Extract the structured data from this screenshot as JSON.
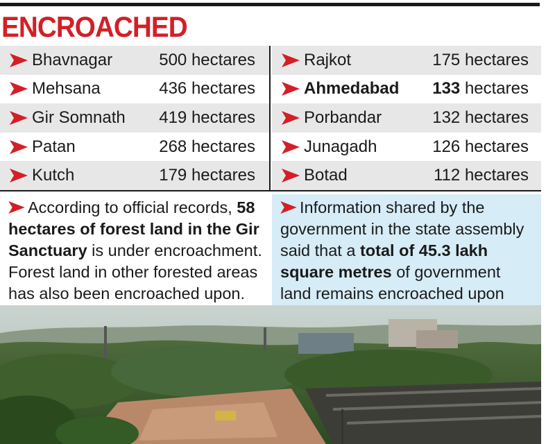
{
  "title": "ENCROACHED",
  "colors": {
    "title": "#d41f26",
    "arrow": "#d41f26",
    "row_shade": "#e7e7e7",
    "note_blue": "#d6ecf7"
  },
  "left_rows": [
    {
      "name": "Bhavnagar",
      "value": "500 hectares"
    },
    {
      "name": "Mehsana",
      "value": "436 hectares"
    },
    {
      "name": "Gir Somnath",
      "value": "419 hectares"
    },
    {
      "name": "Patan",
      "value": "268 hectares"
    },
    {
      "name": "Kutch",
      "value": "179 hectares"
    }
  ],
  "right_rows": [
    {
      "name": "Rajkot",
      "value_num": "175",
      "value_unit": "hectares"
    },
    {
      "name": "Ahmedabad",
      "value_num": "133",
      "value_unit": "hectares"
    },
    {
      "name": "Porbandar",
      "value_num": "132",
      "value_unit": "hectares"
    },
    {
      "name": "Junagadh",
      "value_num": "126",
      "value_unit": "hectares"
    },
    {
      "name": "Botad",
      "value_num": "112",
      "value_unit": "hectares"
    }
  ],
  "note_left": {
    "t1": "According to official records, ",
    "b1": "58 hectares of forest land in the Gir Sanctuary",
    "t2": " is under encroachment. Forest land in other forested areas has also been encroached upon."
  },
  "note_right": {
    "t1": "Information shared by the government in the state assembly said that a ",
    "b1": "total of 45.3 lakh square metres",
    "t2": " of government land remains encroached upon"
  }
}
